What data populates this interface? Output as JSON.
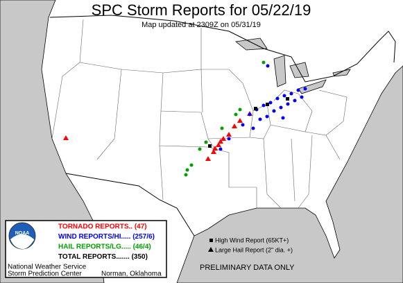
{
  "header": {
    "title": "SPC Storm Reports for 05/22/19",
    "subtitle": "Map updated at 2309Z on 05/31/19"
  },
  "legend": {
    "logo": "NOAA",
    "items": [
      {
        "label": "TORNADO REPORTS.. (47)",
        "color": "#ff0000"
      },
      {
        "label": "WIND REPORTS/HI..... (257/6)",
        "color": "#0000ff"
      },
      {
        "label": "HAIL REPORTS/LG..... (46/4)",
        "color": "#00a000"
      },
      {
        "label": "TOTAL REPORTS....... (350)",
        "color": "#000000"
      }
    ],
    "footer": [
      "National Weather Service",
      "Storm Prediction Center"
    ],
    "location": "Norman, Oklahoma"
  },
  "key": [
    "High Wind Report (65KT+)",
    "Large Hail Report (2\" dia. +)"
  ],
  "notice": "PRELIMINARY DATA ONLY"
}
